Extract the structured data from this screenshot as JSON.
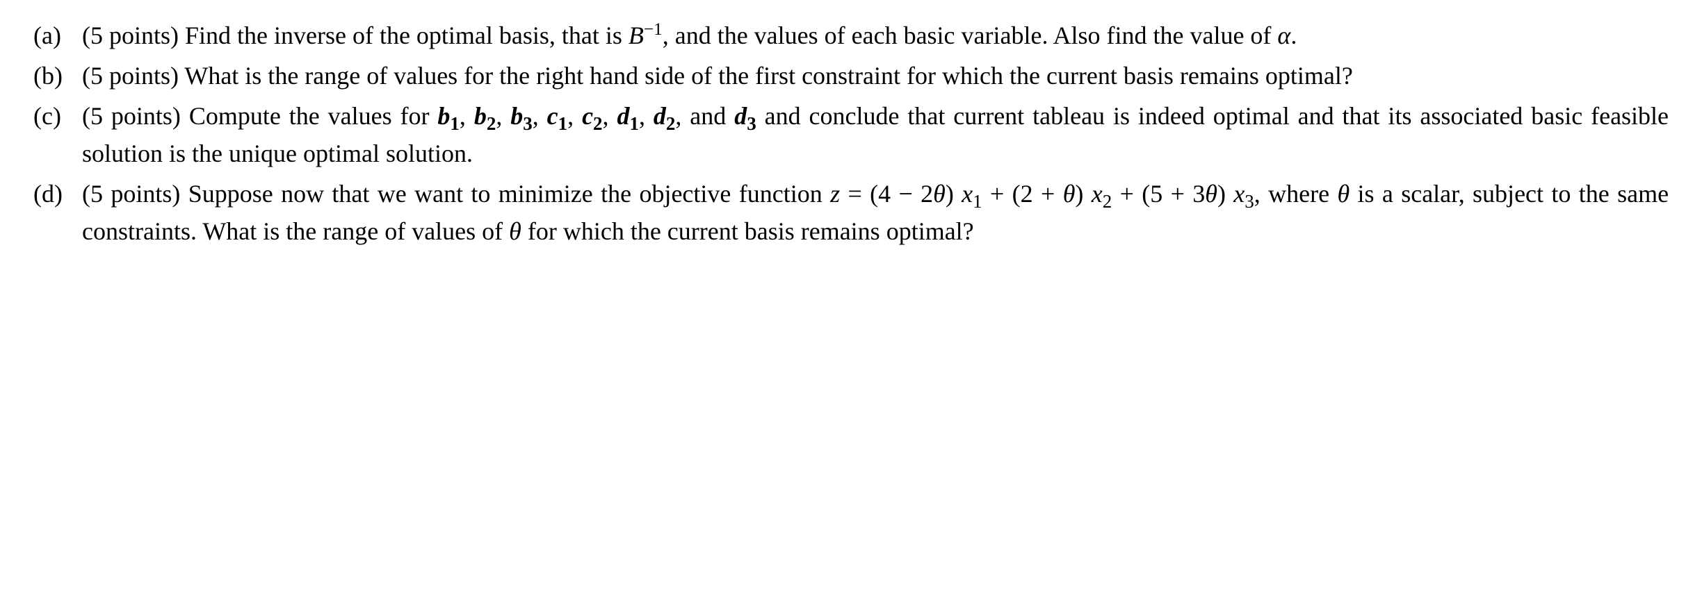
{
  "items": [
    {
      "marker": "(a)",
      "parts": [
        {
          "text": "(5 points) Find the inverse of the optimal basis, that is ",
          "italic": false,
          "bold": false
        },
        {
          "text": "B",
          "italic": true,
          "bold": false
        },
        {
          "text": "−1",
          "italic": false,
          "bold": false,
          "sup": true
        },
        {
          "text": ", and the values of each basic variable. Also find the value of ",
          "italic": false,
          "bold": false
        },
        {
          "text": "α",
          "italic": true,
          "bold": false
        },
        {
          "text": ".",
          "italic": false,
          "bold": false
        }
      ]
    },
    {
      "marker": "(b)",
      "parts": [
        {
          "text": "(5 points) What is the range of values for the right hand side of the first constraint for which the current basis remains optimal?",
          "italic": false,
          "bold": false
        }
      ]
    },
    {
      "marker": "(c)",
      "parts": [
        {
          "text": "(5 points) Compute the values for ",
          "italic": false,
          "bold": false
        },
        {
          "text": "b",
          "italic": true,
          "bold": true
        },
        {
          "text": "1",
          "italic": false,
          "bold": true,
          "sub": true
        },
        {
          "text": ", ",
          "italic": false,
          "bold": false
        },
        {
          "text": "b",
          "italic": true,
          "bold": true
        },
        {
          "text": "2",
          "italic": false,
          "bold": true,
          "sub": true
        },
        {
          "text": ", ",
          "italic": false,
          "bold": false
        },
        {
          "text": "b",
          "italic": true,
          "bold": true
        },
        {
          "text": "3",
          "italic": false,
          "bold": true,
          "sub": true
        },
        {
          "text": ", ",
          "italic": false,
          "bold": false
        },
        {
          "text": "c",
          "italic": true,
          "bold": true
        },
        {
          "text": "1",
          "italic": false,
          "bold": true,
          "sub": true
        },
        {
          "text": ", ",
          "italic": false,
          "bold": false
        },
        {
          "text": "c",
          "italic": true,
          "bold": true
        },
        {
          "text": "2",
          "italic": false,
          "bold": true,
          "sub": true
        },
        {
          "text": ", ",
          "italic": false,
          "bold": false
        },
        {
          "text": "d",
          "italic": true,
          "bold": true
        },
        {
          "text": "1",
          "italic": false,
          "bold": true,
          "sub": true
        },
        {
          "text": ", ",
          "italic": false,
          "bold": false
        },
        {
          "text": "d",
          "italic": true,
          "bold": true
        },
        {
          "text": "2",
          "italic": false,
          "bold": true,
          "sub": true
        },
        {
          "text": ", and ",
          "italic": false,
          "bold": false
        },
        {
          "text": "d",
          "italic": true,
          "bold": true
        },
        {
          "text": "3",
          "italic": false,
          "bold": true,
          "sub": true
        },
        {
          "text": " and conclude that current tableau is indeed optimal and that its associated basic feasible solution is the unique optimal solution.",
          "italic": false,
          "bold": false
        }
      ]
    },
    {
      "marker": "(d)",
      "parts": [
        {
          "text": "(5 points) Suppose now that we want to minimize the objective function ",
          "italic": false,
          "bold": false
        },
        {
          "text": "z",
          "italic": true,
          "bold": false
        },
        {
          "text": " = (4 − 2",
          "italic": false,
          "bold": false
        },
        {
          "text": "θ",
          "italic": true,
          "bold": false
        },
        {
          "text": ") ",
          "italic": false,
          "bold": false
        },
        {
          "text": "x",
          "italic": true,
          "bold": false
        },
        {
          "text": "1",
          "italic": false,
          "bold": false,
          "sub": true
        },
        {
          "text": " + (2 + ",
          "italic": false,
          "bold": false
        },
        {
          "text": "θ",
          "italic": true,
          "bold": false
        },
        {
          "text": ") ",
          "italic": false,
          "bold": false
        },
        {
          "text": "x",
          "italic": true,
          "bold": false
        },
        {
          "text": "2",
          "italic": false,
          "bold": false,
          "sub": true
        },
        {
          "text": " + (5 + 3",
          "italic": false,
          "bold": false
        },
        {
          "text": "θ",
          "italic": true,
          "bold": false
        },
        {
          "text": ") ",
          "italic": false,
          "bold": false
        },
        {
          "text": "x",
          "italic": true,
          "bold": false
        },
        {
          "text": "3",
          "italic": false,
          "bold": false,
          "sub": true
        },
        {
          "text": ", where ",
          "italic": false,
          "bold": false
        },
        {
          "text": "θ",
          "italic": true,
          "bold": false
        },
        {
          "text": " is a scalar, subject to the same constraints. What is the range of values of ",
          "italic": false,
          "bold": false
        },
        {
          "text": "θ",
          "italic": true,
          "bold": false
        },
        {
          "text": " for which the current basis remains optimal?",
          "italic": false,
          "bold": false
        }
      ]
    }
  ]
}
